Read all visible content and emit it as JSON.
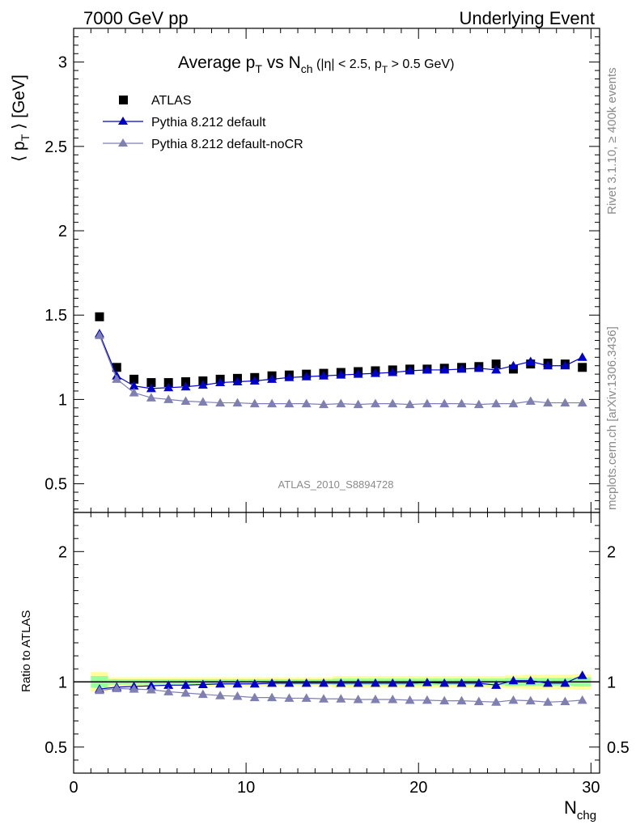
{
  "header": {
    "left": "7000 GeV pp",
    "right": "Underlying Event"
  },
  "side_labels": {
    "rivet": "Rivet 3.1.10, ≥ 400k events",
    "mcplots": "mcplots.cern.ch [arXiv:1306.3436]"
  },
  "chart_data": [
    {
      "type": "scatter",
      "title_parts": {
        "main": "Average p",
        "main_sub": "T",
        "vs": " vs N",
        "vs_sub": "ch",
        "cuts_a": " (|η| < 2.5, p",
        "cuts_sub": "T",
        "cuts_b": " > 0.5 GeV)"
      },
      "ylabel": "⟨ p",
      "ylabel_sub": "T",
      "ylabel_end": " ⟩ [GeV]",
      "xlabel": "N",
      "xlabel_sub": "chg",
      "xlim": [
        0,
        30.5
      ],
      "ylim": [
        0.33,
        3.2
      ],
      "yticks": [
        0.5,
        1,
        1.5,
        2,
        2.5,
        3
      ],
      "ytick_labels": [
        "0.5",
        "1",
        "1.5",
        "2",
        "2.5",
        "3"
      ],
      "watermark": "ATLAS_2010_S8894728",
      "legend": [
        "ATLAS",
        "Pythia 8.212 default",
        "Pythia 8.212 default-noCR"
      ],
      "legend_position": "top-left",
      "x": [
        1.5,
        2.5,
        3.5,
        4.5,
        5.5,
        6.5,
        7.5,
        8.5,
        9.5,
        10.5,
        11.5,
        12.5,
        13.5,
        14.5,
        15.5,
        16.5,
        17.5,
        18.5,
        19.5,
        20.5,
        21.5,
        22.5,
        23.5,
        24.5,
        25.5,
        26.5,
        27.5,
        28.5,
        29.5
      ],
      "series": [
        {
          "name": "ATLAS",
          "color": "#000000",
          "marker": "square",
          "values": [
            1.49,
            1.19,
            1.12,
            1.1,
            1.1,
            1.105,
            1.11,
            1.12,
            1.125,
            1.13,
            1.14,
            1.145,
            1.15,
            1.155,
            1.16,
            1.165,
            1.17,
            1.175,
            1.18,
            1.18,
            1.185,
            1.19,
            1.195,
            1.21,
            1.18,
            1.21,
            1.215,
            1.21,
            1.19
          ]
        },
        {
          "name": "Pythia 8.212 default",
          "color": "#0000cc",
          "marker": "triangle",
          "values": [
            1.39,
            1.14,
            1.08,
            1.065,
            1.07,
            1.075,
            1.085,
            1.1,
            1.105,
            1.11,
            1.12,
            1.13,
            1.135,
            1.14,
            1.145,
            1.15,
            1.155,
            1.16,
            1.17,
            1.175,
            1.175,
            1.18,
            1.185,
            1.175,
            1.2,
            1.225,
            1.2,
            1.2,
            1.25
          ]
        },
        {
          "name": "Pythia 8.212 default-noCR",
          "color": "#7f7fb2",
          "marker": "triangle",
          "values": [
            1.38,
            1.12,
            1.04,
            1.01,
            1.0,
            0.99,
            0.985,
            0.98,
            0.98,
            0.975,
            0.975,
            0.975,
            0.975,
            0.97,
            0.975,
            0.97,
            0.975,
            0.975,
            0.97,
            0.975,
            0.975,
            0.975,
            0.97,
            0.975,
            0.975,
            0.99,
            0.98,
            0.98,
            0.98
          ]
        }
      ]
    },
    {
      "type": "line",
      "ylabel": "Ratio to ATLAS",
      "xlim": [
        0,
        30.5
      ],
      "ylim": [
        0.3,
        2.3
      ],
      "yticks": [
        0.5,
        1,
        2
      ],
      "ytick_labels": [
        "0.5",
        "1",
        "2"
      ],
      "xticks": [
        0,
        10,
        20,
        30
      ],
      "xtick_labels": [
        "0",
        "10",
        "20",
        "30"
      ],
      "band_edges": [
        1,
        2,
        3,
        4,
        5,
        6,
        7,
        8,
        9,
        10,
        11,
        12,
        13,
        14,
        15,
        16,
        17,
        18,
        19,
        20,
        21,
        22,
        23,
        24,
        25,
        26,
        27,
        28,
        29,
        30
      ],
      "band_outer": [
        0.075,
        0.035,
        0.035,
        0.035,
        0.035,
        0.035,
        0.035,
        0.035,
        0.035,
        0.035,
        0.035,
        0.035,
        0.035,
        0.035,
        0.045,
        0.045,
        0.045,
        0.045,
        0.045,
        0.045,
        0.045,
        0.045,
        0.045,
        0.045,
        0.05,
        0.055,
        0.055,
        0.055,
        0.06
      ],
      "band_inner": [
        0.045,
        0.02,
        0.02,
        0.02,
        0.02,
        0.02,
        0.02,
        0.02,
        0.02,
        0.02,
        0.02,
        0.02,
        0.02,
        0.02,
        0.025,
        0.025,
        0.025,
        0.025,
        0.025,
        0.025,
        0.025,
        0.025,
        0.025,
        0.025,
        0.03,
        0.03,
        0.03,
        0.03,
        0.035
      ],
      "band_colors": {
        "outer": "#ffff99",
        "inner": "#99ff99"
      },
      "x": [
        1.5,
        2.5,
        3.5,
        4.5,
        5.5,
        6.5,
        7.5,
        8.5,
        9.5,
        10.5,
        11.5,
        12.5,
        13.5,
        14.5,
        15.5,
        16.5,
        17.5,
        18.5,
        19.5,
        20.5,
        21.5,
        22.5,
        23.5,
        24.5,
        25.5,
        26.5,
        27.5,
        28.5,
        29.5
      ],
      "series": [
        {
          "name": "Pythia 8.212 default",
          "color": "#0000cc",
          "marker": "triangle",
          "values": [
            0.945,
            0.96,
            0.965,
            0.97,
            0.975,
            0.975,
            0.98,
            0.985,
            0.985,
            0.985,
            0.99,
            0.99,
            0.99,
            0.99,
            0.99,
            0.99,
            0.99,
            0.99,
            0.99,
            0.995,
            0.99,
            0.99,
            0.99,
            0.975,
            1.01,
            1.01,
            0.99,
            0.99,
            1.05
          ]
        },
        {
          "name": "Pythia 8.212 default-noCR",
          "color": "#7f7fb2",
          "marker": "triangle",
          "values": [
            0.935,
            0.95,
            0.945,
            0.94,
            0.925,
            0.915,
            0.905,
            0.895,
            0.89,
            0.88,
            0.88,
            0.875,
            0.875,
            0.87,
            0.87,
            0.865,
            0.865,
            0.865,
            0.86,
            0.86,
            0.855,
            0.855,
            0.85,
            0.845,
            0.86,
            0.855,
            0.845,
            0.85,
            0.86
          ]
        }
      ]
    }
  ]
}
